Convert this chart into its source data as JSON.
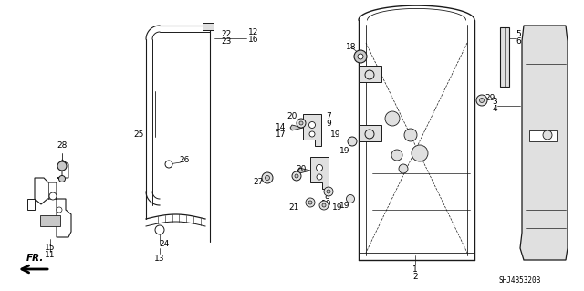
{
  "bg_color": "#ffffff",
  "diagram_code": "SHJ4B5320B",
  "line_color": "#1a1a1a",
  "text_color": "#000000",
  "gray_fill": "#c8c8c8",
  "light_gray": "#e0e0e0",
  "font_size": 6.5
}
